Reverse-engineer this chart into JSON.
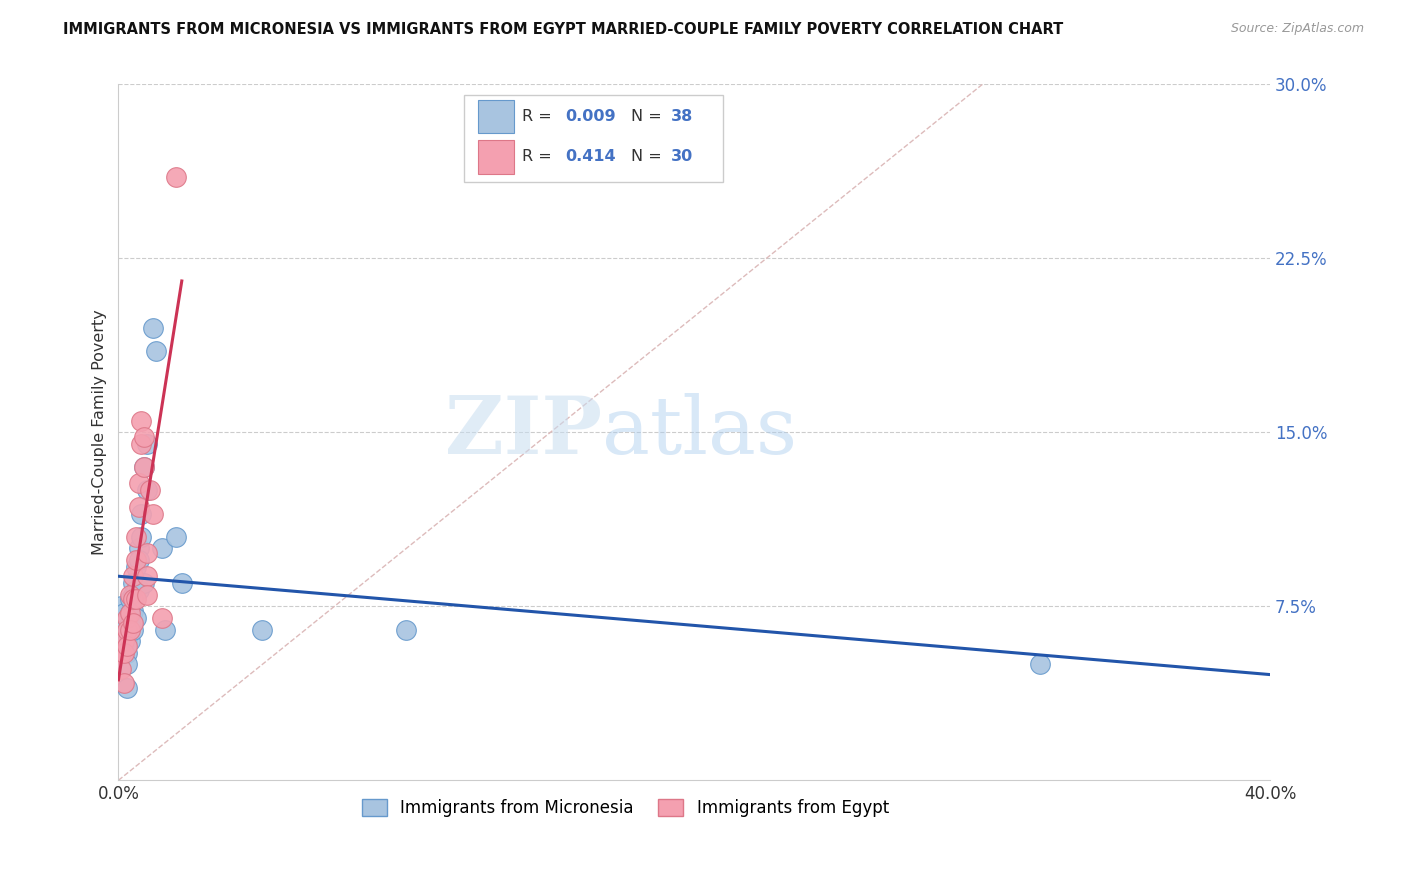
{
  "title": "IMMIGRANTS FROM MICRONESIA VS IMMIGRANTS FROM EGYPT MARRIED-COUPLE FAMILY POVERTY CORRELATION CHART",
  "source": "Source: ZipAtlas.com",
  "ylabel": "Married-Couple Family Poverty",
  "xlim": [
    0.0,
    0.4
  ],
  "ylim": [
    0.0,
    0.3
  ],
  "xticks": [
    0.0,
    0.1,
    0.2,
    0.3,
    0.4
  ],
  "xtick_labels": [
    "0.0%",
    "",
    "",
    "",
    "40.0%"
  ],
  "yticks_right": [
    0.075,
    0.15,
    0.225,
    0.3
  ],
  "ytick_labels_right": [
    "7.5%",
    "15.0%",
    "22.5%",
    "30.0%"
  ],
  "watermark_zip": "ZIP",
  "watermark_atlas": "atlas",
  "legend_label1": "Immigrants from Micronesia",
  "legend_label2": "Immigrants from Egypt",
  "R1": "0.009",
  "N1": "38",
  "R2": "0.414",
  "N2": "30",
  "micronesia_color": "#a8c4e0",
  "egypt_color": "#f4a0b0",
  "trend_color_micronesia": "#2255aa",
  "trend_color_egypt": "#cc3355",
  "diagonal_color": "#cccccc",
  "micronesia_x": [
    0.001,
    0.001,
    0.002,
    0.002,
    0.002,
    0.003,
    0.003,
    0.003,
    0.003,
    0.004,
    0.004,
    0.004,
    0.004,
    0.005,
    0.005,
    0.005,
    0.005,
    0.006,
    0.006,
    0.006,
    0.007,
    0.007,
    0.007,
    0.008,
    0.008,
    0.009,
    0.009,
    0.01,
    0.01,
    0.012,
    0.013,
    0.015,
    0.016,
    0.02,
    0.022,
    0.05,
    0.1,
    0.32
  ],
  "micronesia_y": [
    0.075,
    0.068,
    0.072,
    0.065,
    0.055,
    0.06,
    0.055,
    0.05,
    0.04,
    0.078,
    0.072,
    0.068,
    0.06,
    0.085,
    0.08,
    0.073,
    0.065,
    0.092,
    0.082,
    0.07,
    0.1,
    0.095,
    0.082,
    0.115,
    0.105,
    0.135,
    0.085,
    0.145,
    0.125,
    0.195,
    0.185,
    0.1,
    0.065,
    0.105,
    0.085,
    0.065,
    0.065,
    0.05
  ],
  "egypt_x": [
    0.001,
    0.001,
    0.002,
    0.002,
    0.002,
    0.003,
    0.003,
    0.003,
    0.004,
    0.004,
    0.004,
    0.005,
    0.005,
    0.005,
    0.006,
    0.006,
    0.006,
    0.007,
    0.007,
    0.008,
    0.008,
    0.009,
    0.009,
    0.01,
    0.01,
    0.01,
    0.011,
    0.012,
    0.015,
    0.02
  ],
  "egypt_y": [
    0.055,
    0.048,
    0.06,
    0.055,
    0.042,
    0.07,
    0.065,
    0.058,
    0.08,
    0.072,
    0.065,
    0.088,
    0.078,
    0.068,
    0.105,
    0.095,
    0.078,
    0.128,
    0.118,
    0.155,
    0.145,
    0.148,
    0.135,
    0.098,
    0.088,
    0.08,
    0.125,
    0.115,
    0.07,
    0.26
  ]
}
